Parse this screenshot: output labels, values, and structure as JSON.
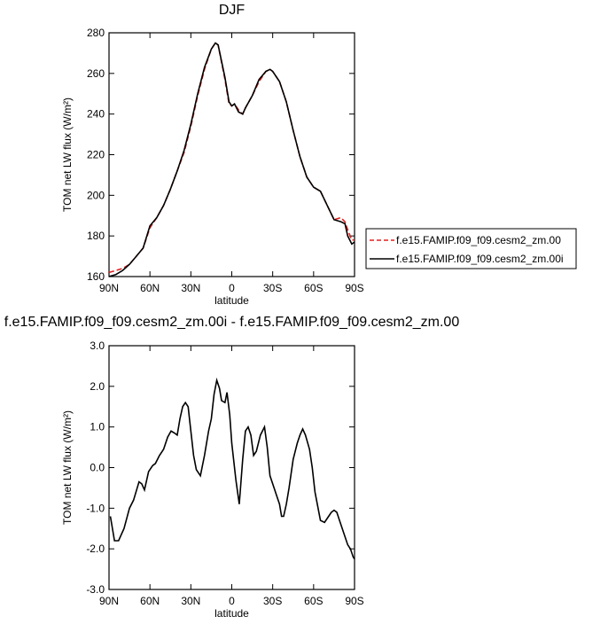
{
  "chart_data": [
    {
      "type": "line",
      "title": "DJF",
      "x_label": "latitude",
      "y_label": "TOM net LW flux (W/m²)",
      "xlim": [
        90,
        -90
      ],
      "xticks": [
        {
          "value": 90,
          "label": "90N"
        },
        {
          "value": 60,
          "label": "60N"
        },
        {
          "value": 30,
          "label": "30N"
        },
        0,
        {
          "value": -30,
          "label": "30S"
        },
        {
          "value": -60,
          "label": "60S"
        },
        {
          "value": -90,
          "label": "90S"
        }
      ],
      "ylim": [
        160,
        280
      ],
      "yticks": [
        160,
        180,
        200,
        220,
        240,
        260,
        280
      ],
      "legend": "right",
      "x": [
        90,
        85,
        80,
        75,
        70,
        65,
        60,
        55,
        50,
        45,
        40,
        35,
        30,
        25,
        20,
        15,
        12,
        10,
        5,
        2,
        0,
        -2,
        -5,
        -8,
        -10,
        -15,
        -20,
        -25,
        -28,
        -30,
        -35,
        -40,
        -45,
        -50,
        -55,
        -60,
        -65,
        -70,
        -75,
        -80,
        -83,
        -85,
        -88,
        -90
      ],
      "series": [
        {
          "name": "f.e15.FAMIP.f09_f09.cesm2_zm.00",
          "color": "#e02020",
          "dash": true,
          "values": [
            162,
            163,
            164,
            166,
            170,
            174,
            184,
            189,
            195,
            203,
            212,
            221,
            234,
            249,
            262,
            272,
            275,
            274,
            257,
            245,
            244,
            245,
            242,
            240,
            243,
            249,
            256,
            261,
            262,
            261,
            256,
            246,
            232,
            219,
            209,
            204,
            202,
            195,
            188,
            189,
            187,
            183,
            178,
            178
          ]
        },
        {
          "name": "f.e15.FAMIP.f09_f09.cesm2_zm.00i",
          "color": "#000000",
          "dash": false,
          "values": [
            160,
            161,
            163,
            166,
            170,
            174,
            185,
            189,
            195,
            203,
            212,
            222,
            235,
            250,
            263,
            272,
            275,
            274,
            258,
            246,
            244,
            245,
            241,
            240,
            243,
            249,
            257,
            261,
            262,
            261,
            256,
            246,
            232,
            219,
            209,
            204,
            202,
            195,
            188,
            187,
            186,
            180,
            176,
            177
          ]
        }
      ]
    },
    {
      "type": "line",
      "title": "f.e15.FAMIP.f09_f09.cesm2_zm.00i - f.e15.FAMIP.f09_f09.cesm2_zm.00",
      "x_label": "latitude",
      "y_label": "TOM net LW flux (W/m²)",
      "xlim": [
        90,
        -90
      ],
      "xticks": [
        {
          "value": 90,
          "label": "90N"
        },
        {
          "value": 60,
          "label": "60N"
        },
        {
          "value": 30,
          "label": "30N"
        },
        0,
        {
          "value": -30,
          "label": "30S"
        },
        {
          "value": -60,
          "label": "60S"
        },
        {
          "value": -90,
          "label": "90S"
        }
      ],
      "ylim": [
        -3,
        3
      ],
      "yticks": [
        {
          "value": -3,
          "label": "-3.0"
        },
        {
          "value": -2,
          "label": "-2.0"
        },
        {
          "value": -1,
          "label": "-1.0"
        },
        {
          "value": 0,
          "label": "0.0"
        },
        {
          "value": 1,
          "label": "1.0"
        },
        {
          "value": 2,
          "label": "2.0"
        },
        {
          "value": 3,
          "label": "3.0"
        }
      ],
      "color": "#000000",
      "x": [
        89,
        86,
        83,
        79,
        75,
        72,
        68,
        66,
        64,
        61,
        58,
        56,
        53,
        50,
        47,
        44.5,
        42,
        40,
        38,
        36,
        34,
        32,
        30,
        28,
        26,
        23,
        20,
        17,
        15,
        13,
        11,
        9,
        7.5,
        5,
        3.5,
        1.5,
        0,
        -3,
        -5.5,
        -8,
        -10,
        -12,
        -14,
        -16,
        -18,
        -21,
        -24,
        -26,
        -28,
        -31,
        -33,
        -35,
        -36.5,
        -38,
        -40,
        -42,
        -45,
        -48,
        -50,
        -52,
        -54,
        -57,
        -59,
        -61,
        -63,
        -65,
        -68,
        -71,
        -73,
        -75,
        -77,
        -79,
        -82,
        -85,
        -87,
        -89,
        -90
      ],
      "values": [
        -1.2,
        -1.8,
        -1.8,
        -1.5,
        -1.0,
        -0.8,
        -0.35,
        -0.4,
        -0.55,
        -0.1,
        0.05,
        0.1,
        0.3,
        0.45,
        0.75,
        0.9,
        0.85,
        0.8,
        1.2,
        1.5,
        1.6,
        1.5,
        0.9,
        0.3,
        -0.05,
        -0.2,
        0.3,
        0.9,
        1.2,
        1.8,
        2.15,
        1.95,
        1.65,
        1.6,
        1.85,
        1.3,
        0.6,
        -0.3,
        -0.9,
        0.2,
        0.9,
        1.0,
        0.8,
        0.3,
        0.4,
        0.8,
        1.0,
        0.5,
        -0.2,
        -0.5,
        -0.7,
        -0.9,
        -1.2,
        -1.2,
        -0.9,
        -0.5,
        0.2,
        0.6,
        0.8,
        0.95,
        0.8,
        0.45,
        0.0,
        -0.6,
        -0.95,
        -1.3,
        -1.35,
        -1.2,
        -1.1,
        -1.05,
        -1.1,
        -1.3,
        -1.6,
        -1.9,
        -2.0,
        -2.2,
        -2.25
      ]
    }
  ]
}
